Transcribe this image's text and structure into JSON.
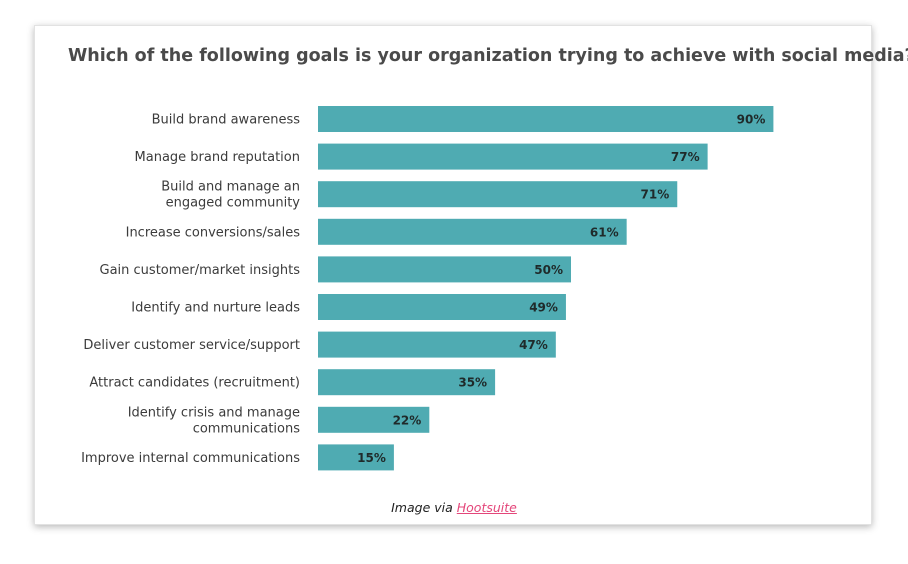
{
  "chart_data": {
    "type": "bar",
    "orientation": "horizontal",
    "title": "Which of the following goals is your organization trying to achieve with social media?",
    "categories": [
      [
        "Build brand awareness"
      ],
      [
        "Manage brand reputation"
      ],
      [
        "Build and manage an",
        "engaged community"
      ],
      [
        "Increase conversions/sales"
      ],
      [
        "Gain customer/market insights"
      ],
      [
        "Identify and nurture leads"
      ],
      [
        "Deliver customer service/support"
      ],
      [
        "Attract candidates (recruitment)"
      ],
      [
        "Identify crisis and manage",
        "communications"
      ],
      [
        "Improve internal communications"
      ]
    ],
    "values": [
      90,
      77,
      71,
      61,
      50,
      49,
      47,
      35,
      22,
      15
    ],
    "value_labels": [
      "90%",
      "77%",
      "71%",
      "61%",
      "50%",
      "49%",
      "47%",
      "35%",
      "22%",
      "15%"
    ],
    "xlim": [
      0,
      100
    ],
    "bar_color": "#4fabb2",
    "grid": false
  },
  "caption": {
    "prefix": "Image via ",
    "link_text": "Hootsuite"
  }
}
